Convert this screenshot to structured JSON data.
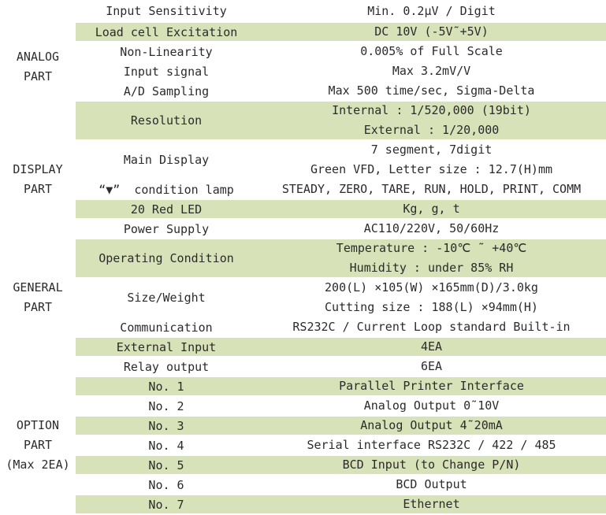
{
  "colors": {
    "row_highlight": "#d7e2b8",
    "text": "#2b2b2b",
    "background": "#ffffff"
  },
  "sections": [
    {
      "name": "analog",
      "lines": [
        "ANALOG",
        "PART"
      ]
    },
    {
      "name": "display",
      "lines": [
        "DISPLAY",
        "PART"
      ]
    },
    {
      "name": "general",
      "lines": [
        "GENERAL",
        "PART"
      ]
    },
    {
      "name": "option",
      "lines": [
        "OPTION",
        "PART",
        "(Max 2EA)"
      ]
    }
  ],
  "table": {
    "rows": [
      {
        "attr": "Input Sensitivity",
        "values": [
          "Min. 0.2μV / Digit"
        ],
        "highlight": false
      },
      {
        "attr": "Load cell Excitation",
        "values": [
          "DC 10V (-5V˜+5V)"
        ],
        "highlight": true
      },
      {
        "attr": "Non-Linearity",
        "values": [
          "0.005% of Full Scale"
        ],
        "highlight": false
      },
      {
        "attr": "Input signal",
        "values": [
          "Max 3.2mV/V"
        ],
        "highlight": false
      },
      {
        "attr": "A/D Sampling",
        "values": [
          "Max 500 time/sec, Sigma-Delta"
        ],
        "highlight": false
      },
      {
        "attr": "Resolution",
        "values": [
          "Internal : 1/520,000 (19bit)",
          "External : 1/20,000"
        ],
        "highlight": true
      },
      {
        "attr": "Main Display",
        "values": [
          "7 segment, 7digit",
          "Green VFD, Letter size : 12.7(H)mm"
        ],
        "highlight": false
      },
      {
        "attr": "“▼”  condition lamp",
        "values": [
          "STEADY, ZERO, TARE, RUN, HOLD, PRINT, COMM"
        ],
        "highlight": false
      },
      {
        "attr": "20 Red LED",
        "values": [
          "Kg, g, t"
        ],
        "highlight": true
      },
      {
        "attr": "Power Supply",
        "values": [
          "AC110/220V, 50/60Hz"
        ],
        "highlight": false
      },
      {
        "attr": "Operating Condition",
        "values": [
          "Temperature : -10℃ ˜ +40℃",
          "Humidity : under 85% RH"
        ],
        "highlight": true
      },
      {
        "attr": "Size/Weight",
        "values": [
          "200(L) ×105(W) ×165mm(D)/3.0kg",
          "Cutting size : 188(L) ×94mm(H)"
        ],
        "highlight": false
      },
      {
        "attr": "Communication",
        "values": [
          "RS232C / Current Loop standard Built-in"
        ],
        "highlight": false
      },
      {
        "attr": "External Input",
        "values": [
          "4EA"
        ],
        "highlight": true
      },
      {
        "attr": "Relay output",
        "values": [
          "6EA"
        ],
        "highlight": false
      },
      {
        "attr": "No. 1",
        "values": [
          "Parallel Printer Interface"
        ],
        "highlight": true
      },
      {
        "attr": "No. 2",
        "values": [
          "Analog Output 0˜10V"
        ],
        "highlight": false
      },
      {
        "attr": "No. 3",
        "values": [
          "Analog Output 4˜20mA"
        ],
        "highlight": true
      },
      {
        "attr": "No. 4",
        "values": [
          "Serial interface RS232C / 422 / 485"
        ],
        "highlight": false
      },
      {
        "attr": "No. 5",
        "values": [
          "BCD Input (to Change P/N)"
        ],
        "highlight": true
      },
      {
        "attr": "No. 6",
        "values": [
          "BCD Output"
        ],
        "highlight": false
      },
      {
        "attr": "No. 7",
        "values": [
          "Ethernet"
        ],
        "highlight": true
      }
    ]
  }
}
